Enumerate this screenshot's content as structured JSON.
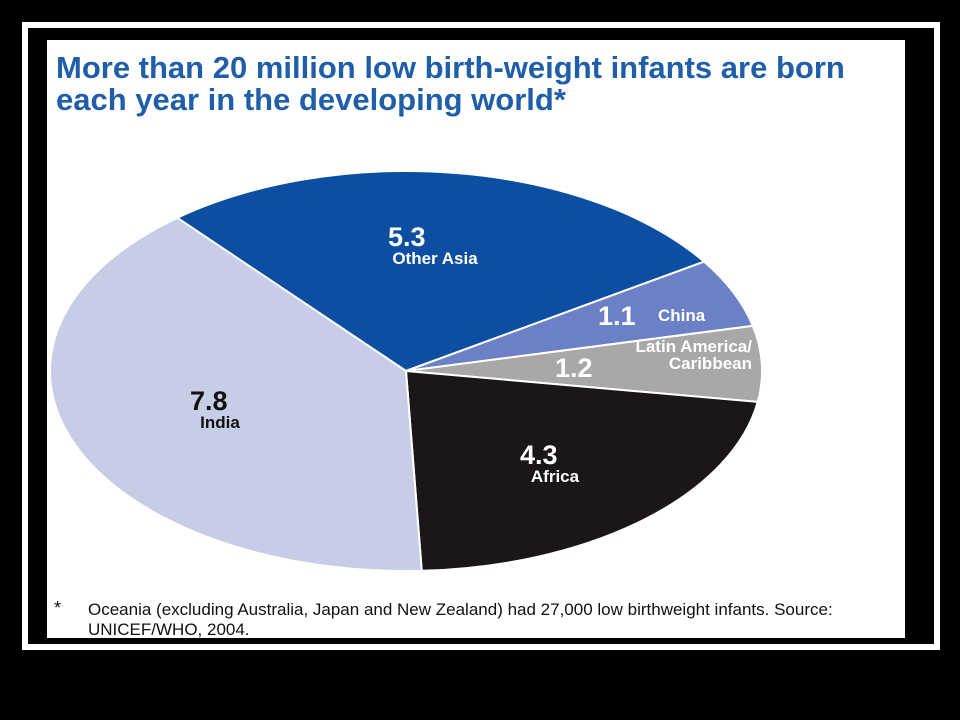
{
  "chart_data": {
    "type": "pie",
    "title": "More than 20 million low birth-weight infants are born each year in the developing world*",
    "categories": [
      "Other Asia",
      "China",
      "Latin America/ Caribbean",
      "Africa",
      "India"
    ],
    "values": [
      5.3,
      1.1,
      1.2,
      4.3,
      7.8
    ],
    "colors": [
      "#0b4ea2",
      "#6b80c6",
      "#a8a8a8",
      "#1b1719",
      "#c7cde6"
    ],
    "footnote_marker": "*",
    "footnote": "Oceania (excluding Australia, Japan and New Zealand) had 27,000 low birthweight infants. Source: UNICEF/WHO, 2004."
  }
}
